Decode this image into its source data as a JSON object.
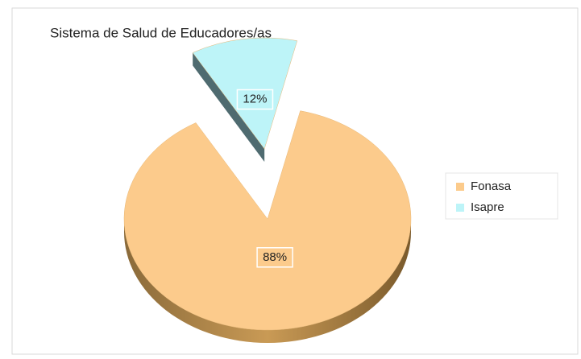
{
  "chart_data": {
    "type": "pie",
    "title": "Sistema de Salud de Educadores/as",
    "categories": [
      "Fonasa",
      "Isapre"
    ],
    "values": [
      88,
      12
    ],
    "value_labels": [
      "88%",
      "12%"
    ],
    "colors": [
      "#fccb8c",
      "#bdf4f8"
    ],
    "legend": "right"
  }
}
